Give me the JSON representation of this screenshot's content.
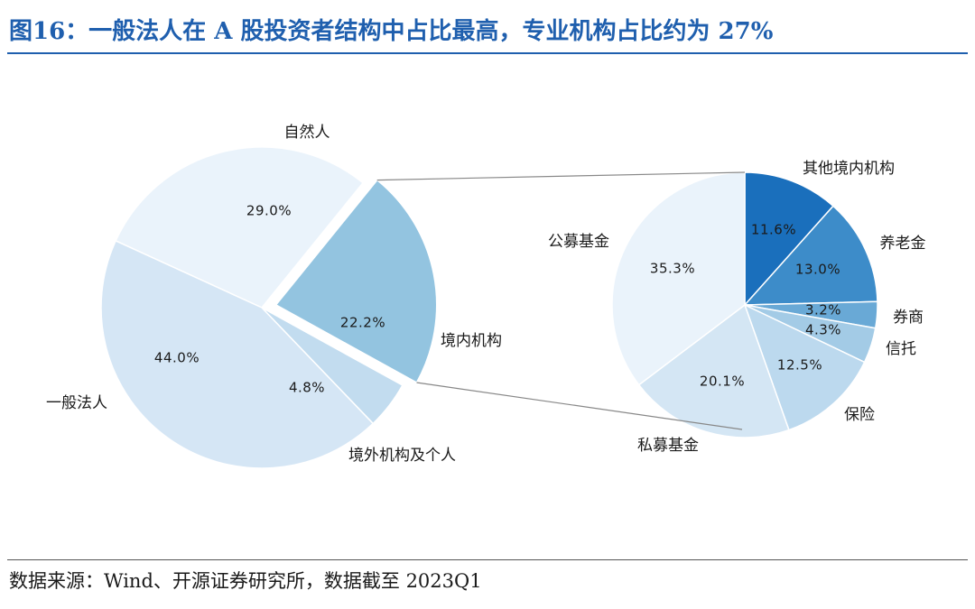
{
  "header": {
    "title": "图16：一般法人在 A 股投资者结构中占比最高，专业机构占比约为 27%"
  },
  "footer": {
    "source": "数据来源：Wind、开源证券研究所，数据截至 2023Q1"
  },
  "colors": {
    "title": "#1f5fae",
    "left": [
      "#d5e6f5",
      "#eaf3fb",
      "#93c4e0",
      "#c2dcef"
    ],
    "right": [
      "#1a6fbc",
      "#3d8cc9",
      "#69a9d6",
      "#a3cbe6",
      "#bcd9ee",
      "#d4e6f4",
      "#eaf3fb"
    ]
  },
  "chart_data": [
    {
      "type": "pie",
      "categories": [
        "一般法人",
        "自然人",
        "境内机构",
        "境外机构及个人"
      ],
      "values": [
        44.0,
        29.0,
        22.2,
        4.8
      ],
      "value_labels": [
        "44.0%",
        "29.0%",
        "22.2%",
        "4.8%"
      ],
      "exploded": "境内机构"
    },
    {
      "type": "pie",
      "categories": [
        "其他境内机构",
        "养老金",
        "券商",
        "信托",
        "保险",
        "私募基金",
        "公募基金"
      ],
      "values": [
        11.6,
        13.0,
        3.2,
        4.3,
        12.5,
        20.1,
        35.3
      ],
      "value_labels": [
        "11.6%",
        "13.0%",
        "3.2%",
        "4.3%",
        "12.5%",
        "20.1%",
        "35.3%"
      ],
      "breakdown_of": "境内机构"
    }
  ]
}
